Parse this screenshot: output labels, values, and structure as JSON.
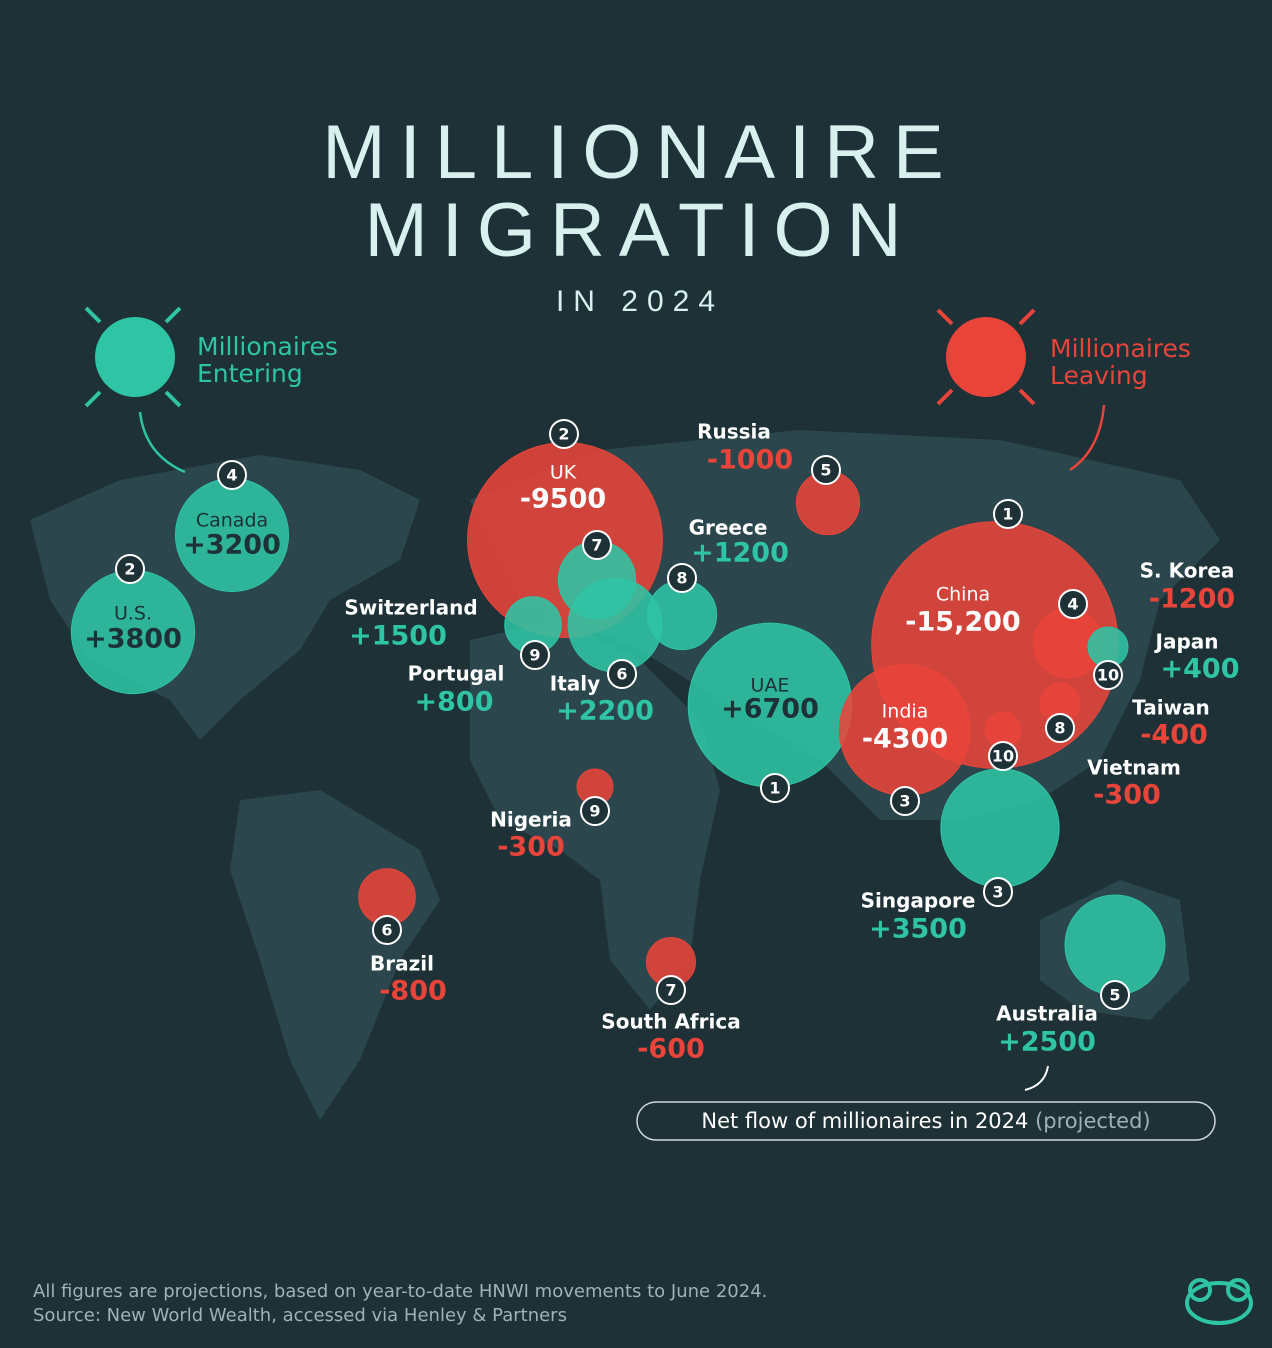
{
  "header": {
    "title_lines": [
      "MILLIONAIRE",
      "MIGRATION"
    ],
    "subtitle": "IN 2024"
  },
  "legend": {
    "entering": [
      "Millionaires",
      "Entering"
    ],
    "leaving": [
      "Millionaires",
      "Leaving"
    ]
  },
  "countries": [
    {
      "name": "U.S.",
      "rank": 2,
      "value": 3800,
      "label": "+3800"
    },
    {
      "name": "Canada",
      "rank": 4,
      "value": 3200,
      "label": "+3200"
    },
    {
      "name": "Switzerland",
      "rank": 7,
      "value": 1500,
      "label": "+1500"
    },
    {
      "name": "Portugal",
      "rank": 9,
      "value": 800,
      "label": "+800"
    },
    {
      "name": "Italy",
      "rank": 6,
      "value": 2200,
      "label": "+2200"
    },
    {
      "name": "Greece",
      "rank": 8,
      "value": 1200,
      "label": "+1200"
    },
    {
      "name": "UAE",
      "rank": 1,
      "value": 6700,
      "label": "+6700"
    },
    {
      "name": "Singapore",
      "rank": 3,
      "value": 3500,
      "label": "+3500"
    },
    {
      "name": "Australia",
      "rank": 5,
      "value": 2500,
      "label": "+2500"
    },
    {
      "name": "Japan",
      "rank": 10,
      "value": 400,
      "label": "+400"
    },
    {
      "name": "China",
      "rank": 1,
      "value": -15200,
      "label": "-15,200"
    },
    {
      "name": "UK",
      "rank": 2,
      "value": -9500,
      "label": "-9500"
    },
    {
      "name": "India",
      "rank": 3,
      "value": -4300,
      "label": "-4300"
    },
    {
      "name": "S. Korea",
      "rank": 4,
      "value": -1200,
      "label": "-1200"
    },
    {
      "name": "Russia",
      "rank": 5,
      "value": -1000,
      "label": "-1000"
    },
    {
      "name": "Brazil",
      "rank": 6,
      "value": -800,
      "label": "-800"
    },
    {
      "name": "South Africa",
      "rank": 7,
      "value": -600,
      "label": "-600"
    },
    {
      "name": "Taiwan",
      "rank": 8,
      "value": -400,
      "label": "-400"
    },
    {
      "name": "Nigeria",
      "rank": 9,
      "value": -300,
      "label": "-300"
    },
    {
      "name": "Vietnam",
      "rank": 10,
      "value": -300,
      "label": "-300"
    }
  ],
  "note": {
    "text": "Net flow of millionaires in 2024",
    "qualifier": "(projected)"
  },
  "footer": {
    "lines": [
      "All figures are projections, based on year-to-date HNWI movements to June 2024.",
      "Source: New World Wealth, accessed via Henley & Partners"
    ]
  }
}
